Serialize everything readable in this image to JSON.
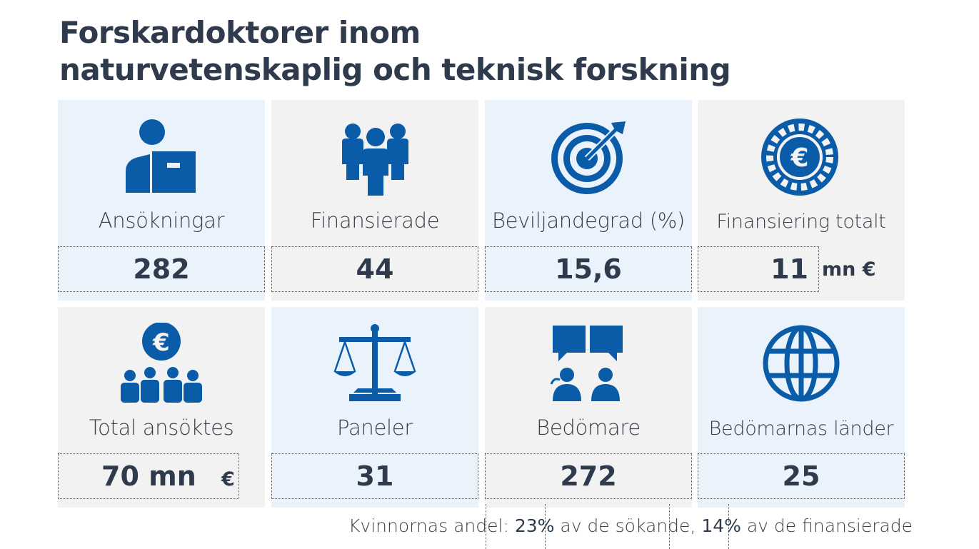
{
  "title_line1": "Forskardoktorer inom",
  "title_line2": "naturvetenskaplig och teknisk forskning",
  "accent_color": "#0b5ca8",
  "tiles": [
    {
      "label": "Ansökningar",
      "value": "282",
      "unit": "",
      "icon": "person-with-document-icon"
    },
    {
      "label": "Finansierade",
      "value": "44",
      "unit": "",
      "icon": "group-of-people-icon"
    },
    {
      "label": "Beviljandegrad (%)",
      "value": "15,6",
      "unit": "",
      "icon": "target-with-arrow-icon"
    },
    {
      "label": "Finansiering totalt",
      "value": "11",
      "unit": "mn €",
      "icon": "euro-coin-icon"
    },
    {
      "label": "Total ansöktes",
      "value": "70 mn",
      "unit": "€",
      "icon": "euro-over-people-icon"
    },
    {
      "label": "Paneler",
      "value": "31",
      "unit": "",
      "icon": "scales-icon"
    },
    {
      "label": "Bedömare",
      "value": "272",
      "unit": "",
      "icon": "speech-bubbles-people-icon"
    },
    {
      "label": "Bedömarnas länder",
      "value": "25",
      "unit": "",
      "icon": "globe-icon"
    }
  ],
  "footer": {
    "prefix": "Kvinnornas andel:",
    "women_applicants_pct": "23%",
    "mid": "av de sökande,",
    "women_funded_pct": "14%",
    "suffix": "av de finansierade"
  }
}
